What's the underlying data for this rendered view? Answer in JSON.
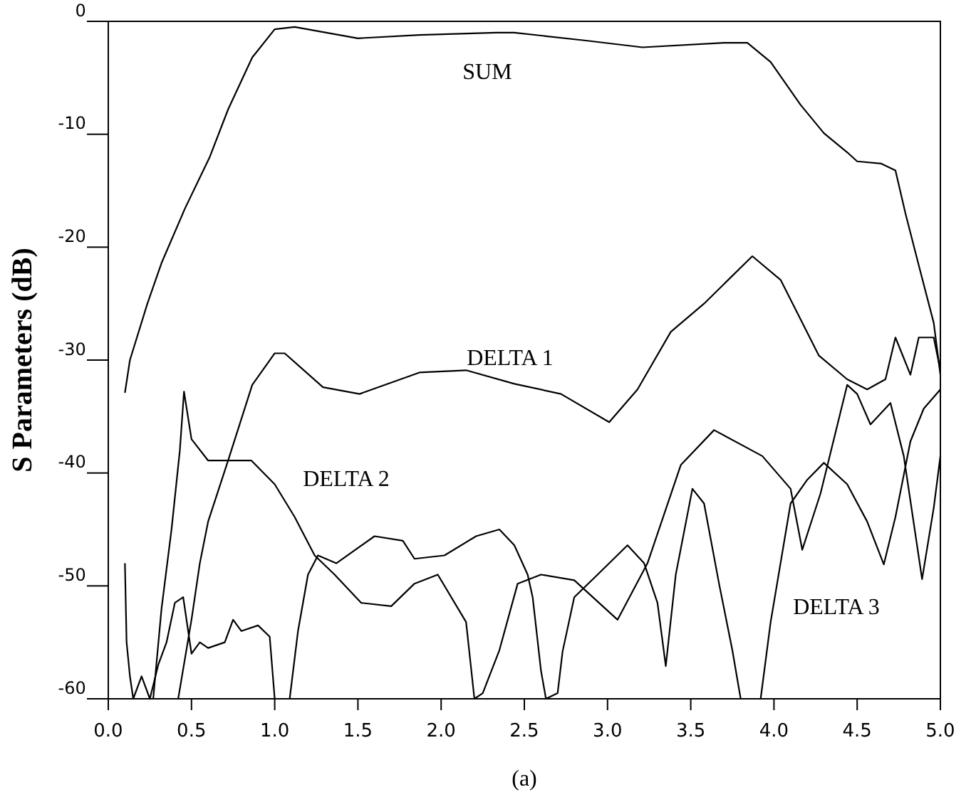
{
  "chart_data": {
    "type": "line",
    "ylabel": "S Parameters (dB)",
    "xlim": [
      0,
      5
    ],
    "ylim": [
      -60,
      0
    ],
    "xticks": [
      {
        "value": 0,
        "label": "0.0"
      },
      {
        "value": 0.5,
        "label": "0.5"
      },
      {
        "value": 1,
        "label": "1.0"
      },
      {
        "value": 1.5,
        "label": "1.5"
      },
      {
        "value": 2,
        "label": "2.0"
      },
      {
        "value": 2.5,
        "label": "2.5"
      },
      {
        "value": 3,
        "label": "3.0"
      },
      {
        "value": 3.5,
        "label": "3.5"
      },
      {
        "value": 4,
        "label": "4.0"
      },
      {
        "value": 4.5,
        "label": "4.5"
      },
      {
        "value": 5,
        "label": "5.0"
      }
    ],
    "yticks": [
      0,
      -10,
      -20,
      -30,
      -40,
      -50,
      -60
    ],
    "grid": false,
    "marker": "none",
    "line_style": "solid",
    "series": [
      {
        "name": "SUM",
        "color": "#000000",
        "x": [
          0.1,
          0.13,
          0.235,
          0.32,
          0.46,
          0.61,
          0.72,
          0.865,
          1.0,
          1.12,
          1.5,
          1.87,
          2.33,
          2.44,
          2.87,
          3.21,
          3.7,
          3.84,
          3.98,
          4.16,
          4.3,
          4.44,
          4.5,
          4.645,
          4.73,
          4.79,
          4.87,
          4.96,
          5.0
        ],
        "values": [
          -32.9,
          -30,
          -25,
          -21.4,
          -16.6,
          -12,
          -7.8,
          -3.2,
          -0.7,
          -0.5,
          -1.5,
          -1.2,
          -1.0,
          -1.0,
          -1.7,
          -2.3,
          -1.9,
          -1.9,
          -3.6,
          -7.4,
          -9.9,
          -11.6,
          -12.4,
          -12.6,
          -13.2,
          -17,
          -21.6,
          -26.7,
          -31.3
        ]
      },
      {
        "name": "DELTA 1",
        "color": "#000000",
        "x": [
          0.42,
          0.5,
          0.55,
          0.6,
          0.72,
          0.865,
          1.0,
          1.06,
          1.29,
          1.51,
          1.87,
          2.15,
          2.44,
          2.72,
          3.01,
          3.18,
          3.38,
          3.58,
          3.87,
          4.04,
          4.27,
          4.44,
          4.56,
          4.67,
          4.73,
          4.82,
          4.87,
          4.96,
          5.0
        ],
        "values": [
          -60,
          -53,
          -48,
          -44.3,
          -38.9,
          -32.2,
          -29.4,
          -29.4,
          -32.4,
          -33,
          -31.1,
          -30.9,
          -32.1,
          -33,
          -35.5,
          -32.6,
          -27.5,
          -25,
          -20.8,
          -22.9,
          -29.6,
          -31.7,
          -32.6,
          -31.7,
          -28,
          -31.3,
          -28,
          -28,
          -30.9
        ]
      },
      {
        "name": "DELTA 2",
        "color": "#000000",
        "x": [
          0.27,
          0.32,
          0.38,
          0.43,
          0.455,
          0.5,
          0.6,
          0.86,
          1.0,
          1.12,
          1.24,
          1.36,
          1.52,
          1.7,
          1.84,
          1.98,
          2.15,
          2.2,
          2.25,
          2.35,
          2.46,
          2.6,
          2.8,
          3.06,
          3.24,
          3.44,
          3.64,
          3.93,
          4.1,
          4.17,
          4.28,
          4.44,
          4.5,
          4.58,
          4.7,
          4.78,
          4.89,
          4.96,
          5.0
        ],
        "values": [
          -60,
          -52,
          -45,
          -38,
          -32.8,
          -37,
          -38.9,
          -38.9,
          -41,
          -43.9,
          -47.3,
          -49,
          -51.5,
          -51.8,
          -49.8,
          -49,
          -53.2,
          -60,
          -59.5,
          -55.7,
          -49.8,
          -49,
          -49.5,
          -53,
          -48,
          -39.3,
          -36.2,
          -38.5,
          -41.4,
          -46.8,
          -41.8,
          -32.2,
          -33,
          -35.7,
          -33.8,
          -38.5,
          -49.4,
          -43.1,
          -38.5
        ]
      },
      {
        "name": "DELTA 3",
        "color": "#000000",
        "x": [
          0.1,
          0.11,
          0.13,
          0.15,
          0.2,
          0.25,
          0.3,
          0.35,
          0.4,
          0.45,
          0.5,
          0.55,
          0.6,
          0.7,
          0.75,
          0.8,
          0.9,
          0.97,
          1.0,
          1.05,
          1.09,
          1.14,
          1.2,
          1.26,
          1.37,
          1.6,
          1.77,
          1.84,
          2.02,
          2.21,
          2.35,
          2.44,
          2.52,
          2.55,
          2.6,
          2.63,
          2.7,
          2.73,
          2.8,
          2.94,
          3.12,
          3.22,
          3.3,
          3.35,
          3.41,
          3.51,
          3.58,
          3.67,
          3.75,
          3.8,
          3.86,
          3.92,
          3.98,
          4.1,
          4.2,
          4.3,
          4.44,
          4.56,
          4.66,
          4.73,
          4.82,
          4.9,
          5.0
        ],
        "values": [
          -48,
          -55,
          -58,
          -60,
          -58,
          -60,
          -57,
          -55,
          -51.5,
          -51,
          -56,
          -55,
          -55.5,
          -55,
          -53,
          -54,
          -53.5,
          -54.5,
          -60,
          null,
          -60,
          -54,
          -49,
          -47.3,
          -48,
          -45.6,
          -46,
          -47.6,
          -47.3,
          -45.6,
          -45,
          -46.4,
          -49,
          -51,
          -57.5,
          -60,
          -59.5,
          -55.8,
          -51,
          -49,
          -46.4,
          -48,
          -51.5,
          -57.1,
          -49,
          -41.4,
          -42.7,
          -49.8,
          -55.7,
          -60,
          null,
          -60,
          -53.2,
          -42.7,
          -40.6,
          -39.1,
          -41,
          -44.3,
          -48.1,
          -43.9,
          -37.2,
          -34.3,
          -32.6
        ]
      }
    ],
    "annotations": [
      "(a)"
    ]
  }
}
